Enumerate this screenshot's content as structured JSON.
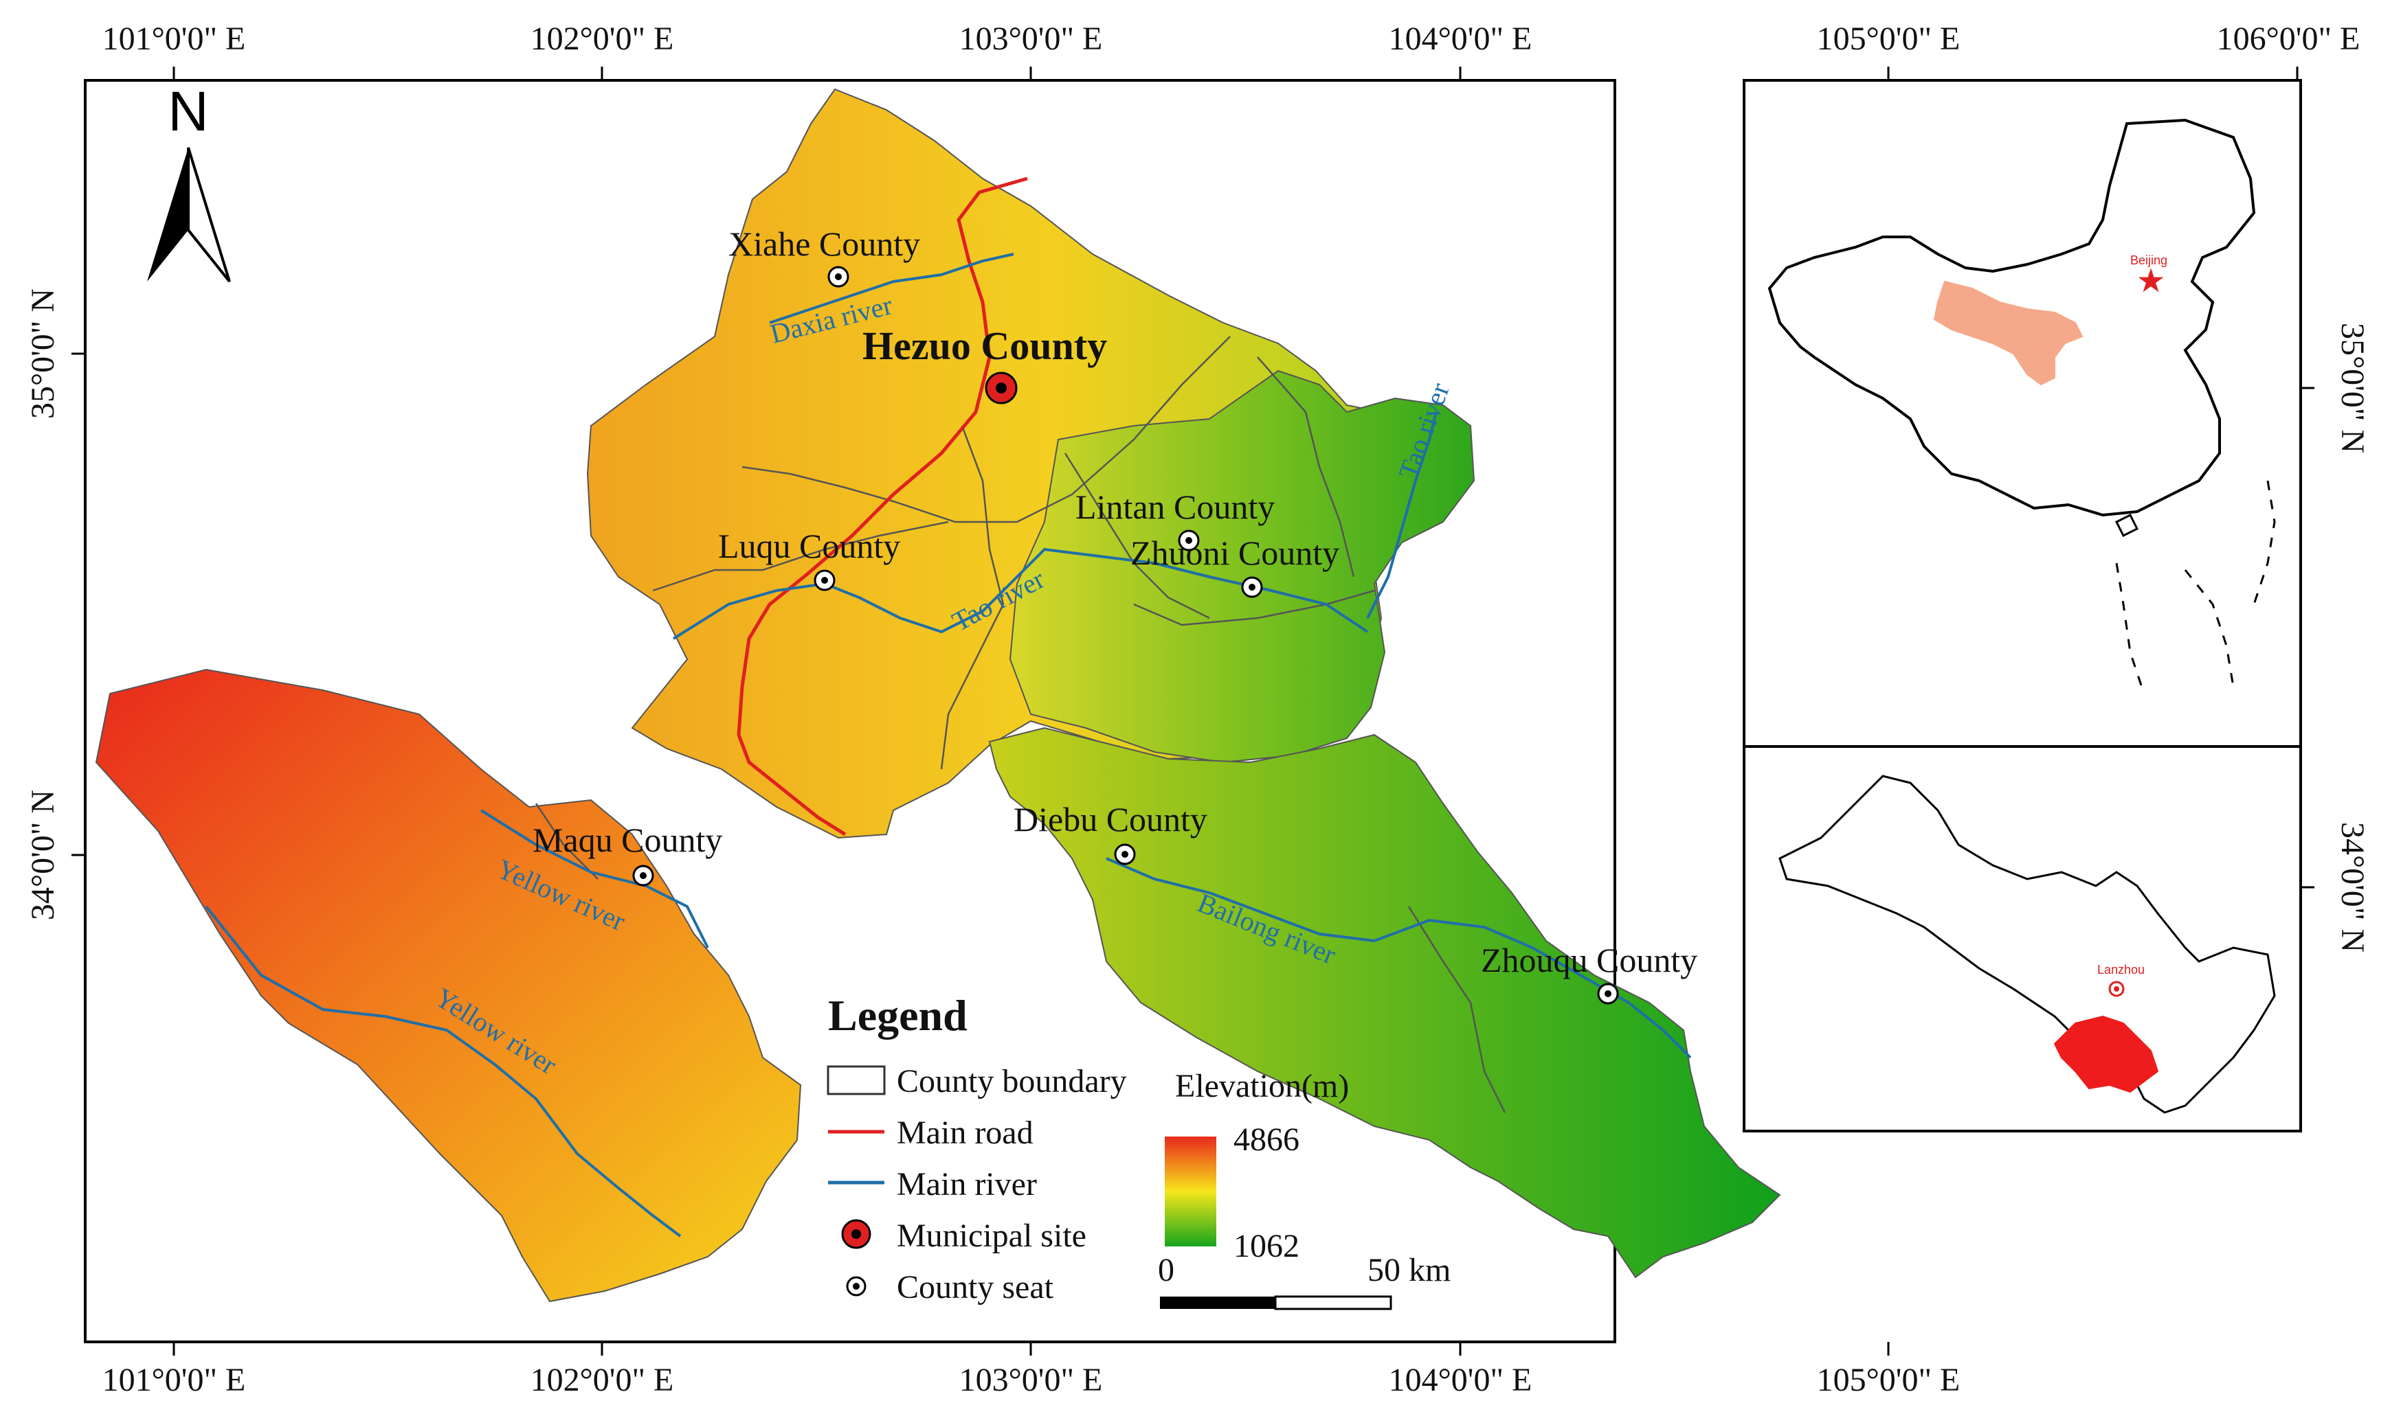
{
  "map": {
    "type": "study-area-map",
    "longitude_ticks_top": [
      "101°0'0\" E",
      "102°0'0\" E",
      "103°0'0\" E",
      "104°0'0\" E",
      "105°0'0\" E",
      "106°0'0\" E"
    ],
    "longitude_ticks_bottom": [
      "101°0'0\" E",
      "102°0'0\" E",
      "103°0'0\" E",
      "104°0'0\" E",
      "105°0'0\" E"
    ],
    "latitude_ticks_left": [
      "35°0'0\" N",
      "34°0'0\" N"
    ],
    "latitude_ticks_right": [
      "35°0'0\" N",
      "34°0'0\" N"
    ],
    "north_arrow": "N",
    "places": {
      "municipal": "Hezuo County",
      "counties": [
        "Xiahe County",
        "Luqu County",
        "Lintan County",
        "Zhuoni County",
        "Maqu County",
        "Diebu County",
        "Zhouqu County"
      ]
    },
    "rivers": [
      "Daxia river",
      "Tao river",
      "Tao river",
      "Yellow river",
      "Yellow river",
      "Bailong river"
    ],
    "inset_labels": {
      "beijing": "Beijing",
      "lanzhou": "Lanzhou"
    }
  },
  "legend": {
    "title": "Legend",
    "items": [
      "County boundary",
      "Main road",
      "Main river",
      "Municipal site",
      "County seat"
    ],
    "elevation_title": "Elevation(m)",
    "elevation_max": "4866",
    "elevation_min": "1062",
    "scale_start": "0",
    "scale_end": "50 km"
  },
  "colors": {
    "elevation_high": "#e8291c",
    "elevation_mid": "#f6e61c",
    "elevation_low": "#16a51c",
    "road": "#e02020",
    "river": "#1f6fa8",
    "highlight_china": "#f6a98a",
    "highlight_gansu": "#ee1c1c"
  }
}
